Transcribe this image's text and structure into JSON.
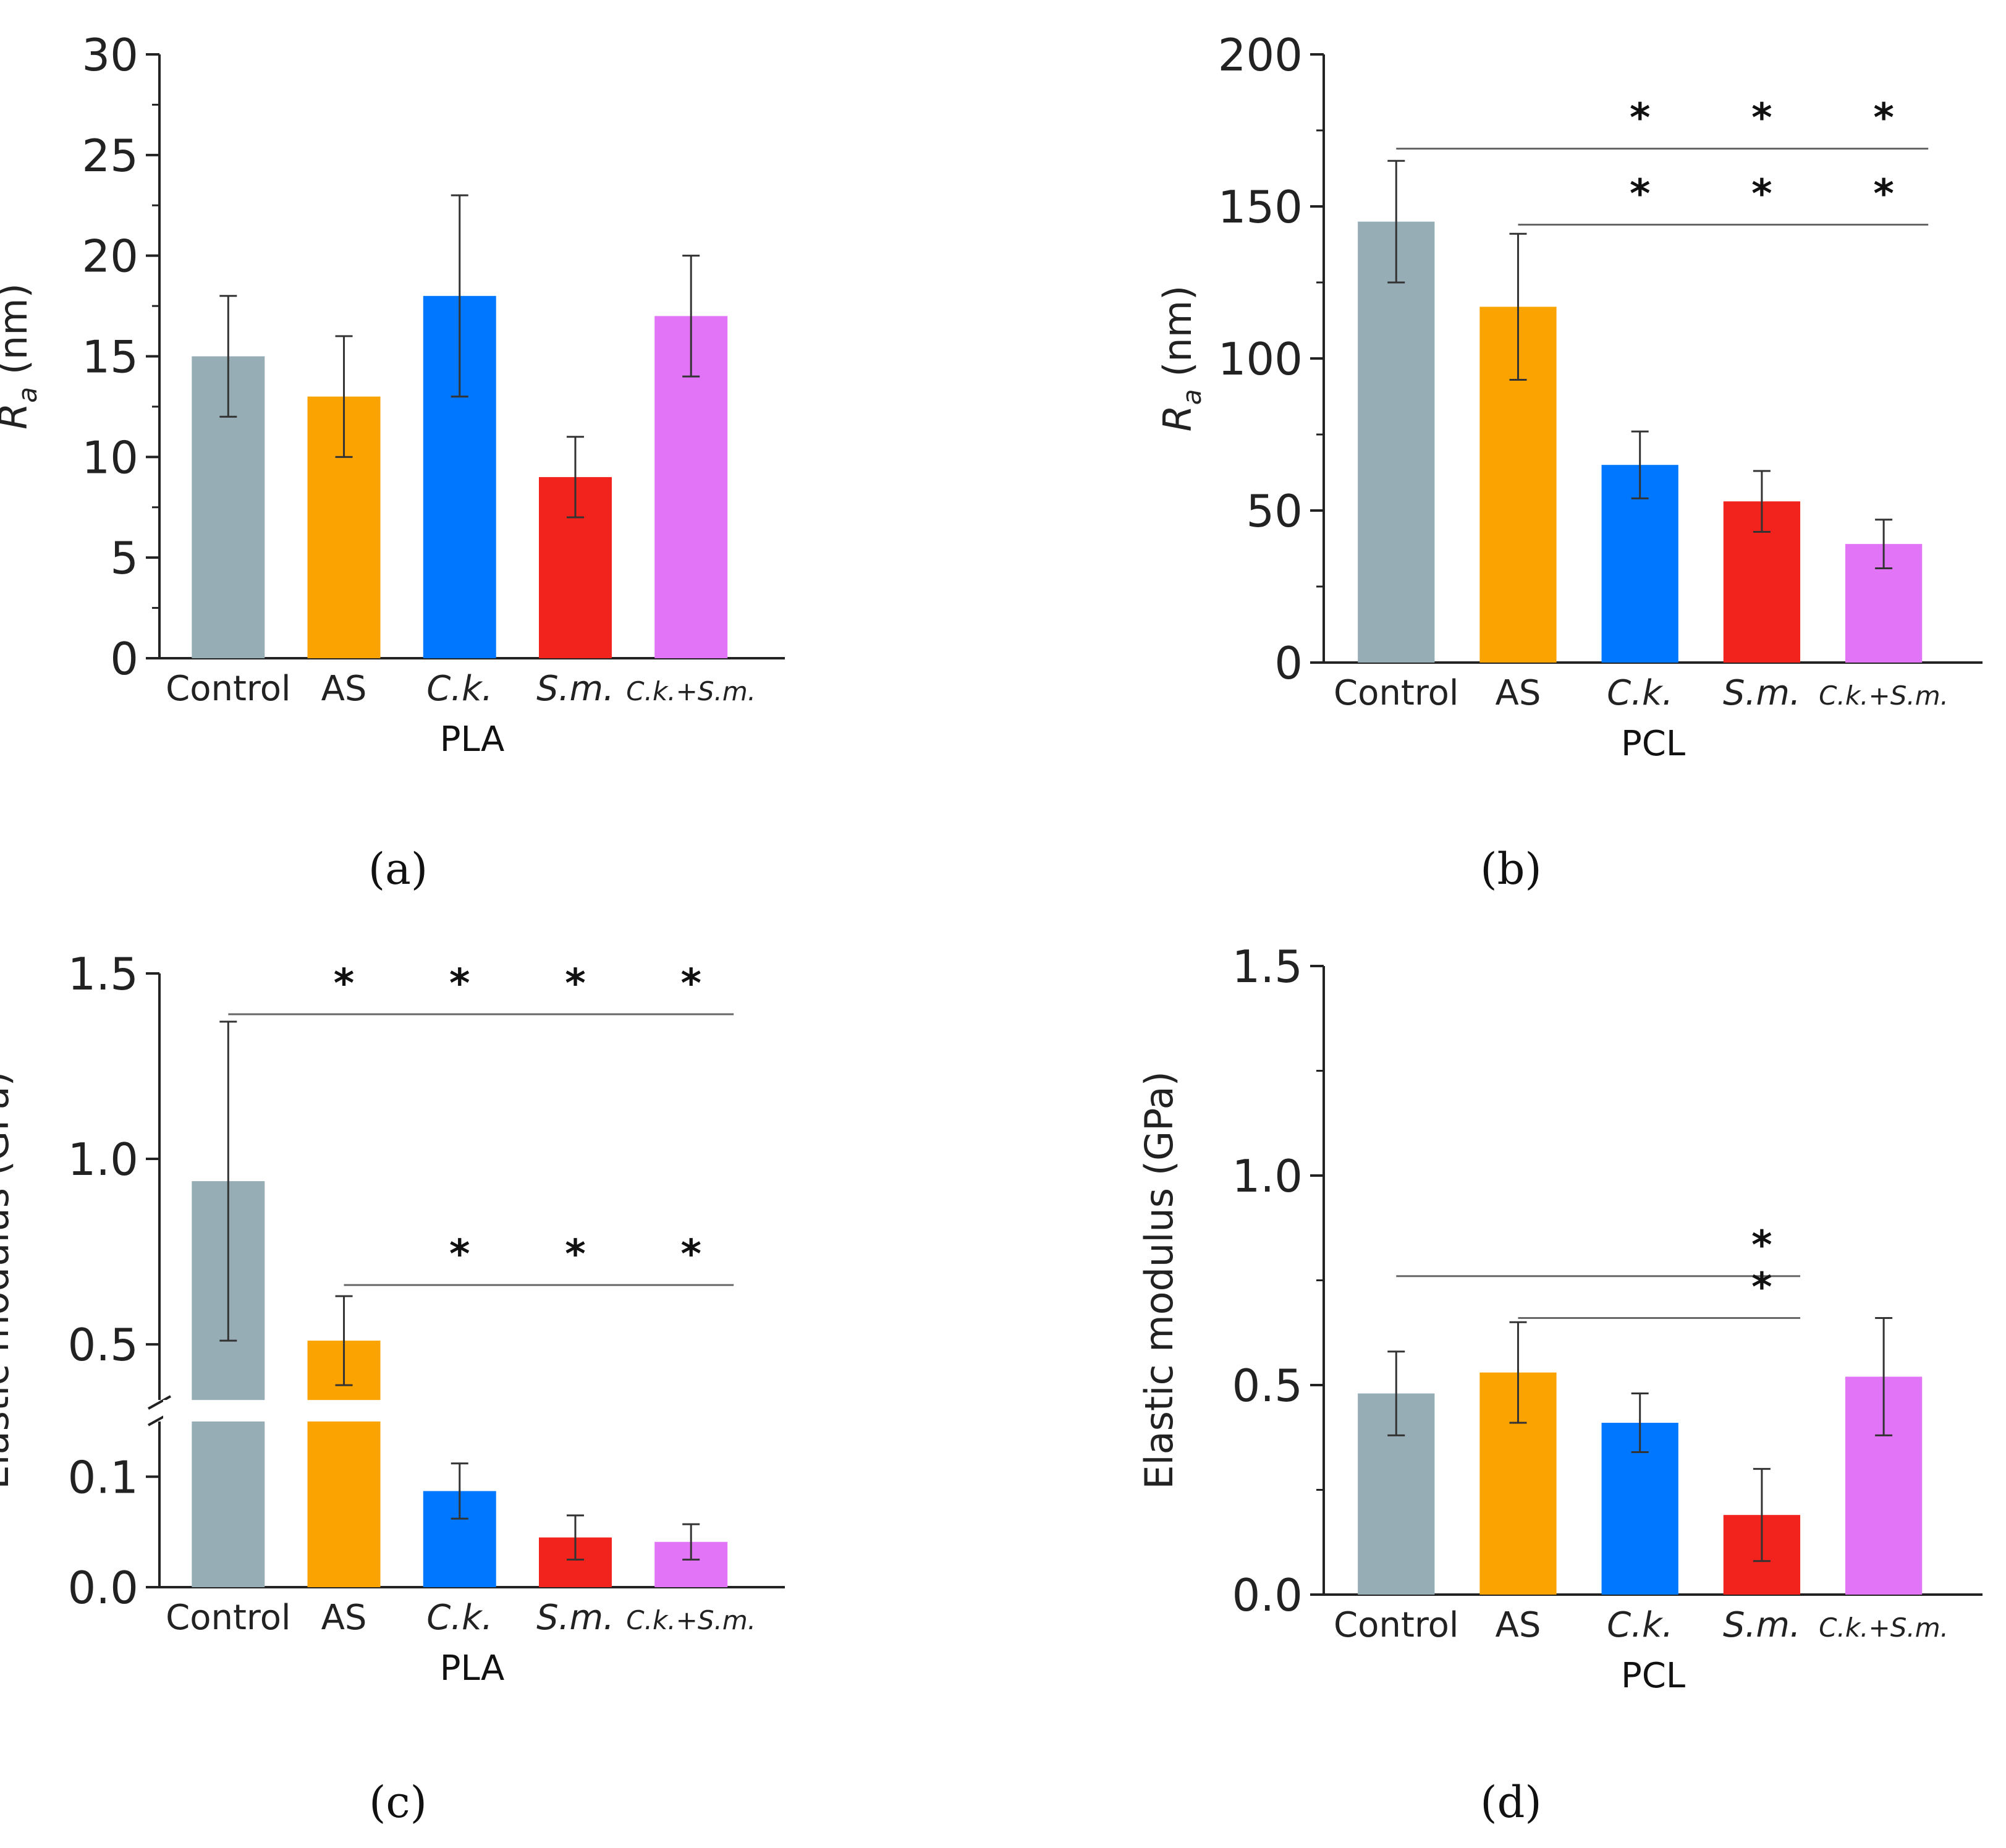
{
  "chart_data": [
    {
      "id": "a",
      "type": "bar",
      "panel_label": "(a)",
      "categories": [
        "Control",
        "AS",
        "C.k.",
        "S.m.",
        "C.k.+S.m."
      ],
      "italic_categories": [
        2,
        3,
        4
      ],
      "values": [
        15,
        13,
        18,
        9,
        17
      ],
      "errors": [
        3,
        3,
        5,
        2,
        3
      ],
      "colors": [
        "#97adb6",
        "#fba300",
        "#0077ff",
        "#f2231d",
        "#e274f8"
      ],
      "xlabel": "PLA",
      "ylabel": {
        "symbol": "R",
        "subscript": "a",
        "unit": " (nm)"
      },
      "ylim": [
        0,
        30
      ],
      "yticks": [
        "0",
        "5",
        "10",
        "15",
        "20",
        "25",
        "30"
      ],
      "ytick_values": [
        0,
        5,
        10,
        15,
        20,
        25,
        30
      ],
      "significance": []
    },
    {
      "id": "b",
      "type": "bar",
      "panel_label": "(b)",
      "categories": [
        "Control",
        "AS",
        "C.k.",
        "S.m.",
        "C.k.+S.m."
      ],
      "italic_categories": [
        2,
        3,
        4
      ],
      "values": [
        145,
        117,
        65,
        53,
        39
      ],
      "errors": [
        20,
        24,
        11,
        10,
        8
      ],
      "colors": [
        "#97adb6",
        "#fba300",
        "#0077ff",
        "#f2231d",
        "#e274f8"
      ],
      "xlabel": "PCL",
      "ylabel": {
        "symbol": "R",
        "subscript": "a",
        "unit": " (nm)"
      },
      "ylim": [
        0,
        200
      ],
      "yticks": [
        "0",
        "50",
        "100",
        "150",
        "200"
      ],
      "ytick_values": [
        0,
        50,
        100,
        150,
        200
      ],
      "significance": [
        {
          "from": 0,
          "to": 4,
          "y": 169,
          "marks": [
            2,
            3,
            4
          ],
          "symbol": "*"
        },
        {
          "from": 1,
          "to": 4,
          "y": 144,
          "marks": [
            2,
            3,
            4
          ],
          "symbol": "*"
        }
      ]
    },
    {
      "id": "c",
      "type": "bar",
      "panel_label": "(c)",
      "categories": [
        "Control",
        "AS",
        "C.k.",
        "S.m.",
        "C.k.+S.m."
      ],
      "italic_categories": [
        2,
        3,
        4
      ],
      "values": [
        0.94,
        0.51,
        0.087,
        0.045,
        0.041
      ],
      "errors": [
        0.43,
        0.12,
        0.025,
        0.02,
        0.016
      ],
      "colors": [
        "#97adb6",
        "#fba300",
        "#0077ff",
        "#f2231d",
        "#e274f8"
      ],
      "xlabel": "PLA",
      "ylabel": {
        "text": "Elastic modulus (GPa)"
      },
      "broken_axis": {
        "lower": [
          0,
          0.15
        ],
        "upper": [
          0.35,
          1.5
        ]
      },
      "yticks": [
        "0.0",
        "0.1",
        "0.5",
        "1.0",
        "1.5"
      ],
      "ytick_values": [
        0,
        0.1,
        0.5,
        1.0,
        1.5
      ],
      "significance": [
        {
          "from": 0,
          "to": 4,
          "y": 1.39,
          "marks": [
            1,
            2,
            3,
            4
          ],
          "symbol": "*"
        },
        {
          "from": 1,
          "to": 4,
          "y": 0.66,
          "marks": [
            2,
            3,
            4
          ],
          "symbol": "*"
        }
      ]
    },
    {
      "id": "d",
      "type": "bar",
      "panel_label": "(d)",
      "categories": [
        "Control",
        "AS",
        "C.k.",
        "S.m.",
        "C.k.+S.m."
      ],
      "italic_categories": [
        2,
        3,
        4
      ],
      "values": [
        0.48,
        0.53,
        0.41,
        0.19,
        0.52
      ],
      "errors": [
        0.1,
        0.12,
        0.07,
        0.11,
        0.14
      ],
      "colors": [
        "#97adb6",
        "#fba300",
        "#0077ff",
        "#f2231d",
        "#e274f8"
      ],
      "xlabel": "PCL",
      "ylabel": {
        "text": "Elastic modulus (GPa)"
      },
      "ylim": [
        0,
        1.5
      ],
      "yticks": [
        "0.0",
        "0.5",
        "1.0",
        "1.5"
      ],
      "ytick_values": [
        0,
        0.5,
        1.0,
        1.5
      ],
      "significance": [
        {
          "from": 0,
          "to": 3,
          "y": 0.76,
          "marks": [
            3
          ],
          "symbol": "*"
        },
        {
          "from": 1,
          "to": 3,
          "y": 0.66,
          "marks": [
            3
          ],
          "symbol": "*"
        }
      ]
    }
  ]
}
